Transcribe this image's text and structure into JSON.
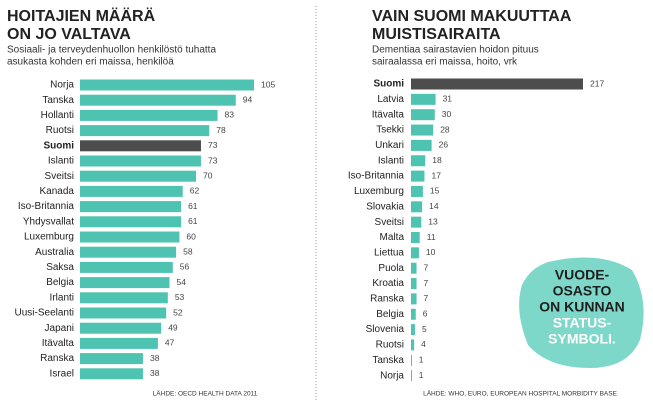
{
  "chart_data": [
    {
      "type": "bar",
      "orientation": "horizontal",
      "title": [
        "HOITAJIEN MÄÄRÄ",
        "ON JO VALTAVA"
      ],
      "subtitle": [
        "Sosiaali- ja terveydenhuollon henkilöstö tuhatta",
        "asukasta kohden eri maissa, henkilöä"
      ],
      "source": "LÄHDE: OECD HEALTH DATA 2011",
      "categories": [
        "Norja",
        "Tanska",
        "Hollanti",
        "Ruotsi",
        "Suomi",
        "Islanti",
        "Sveitsi",
        "Kanada",
        "Iso-Britannia",
        "Yhdysvallat",
        "Luxemburg",
        "Australia",
        "Saksa",
        "Belgia",
        "Irlanti",
        "Uusi-Seelanti",
        "Japani",
        "Itävalta",
        "Ranska",
        "Israel"
      ],
      "values": [
        105,
        94,
        83,
        78,
        73,
        73,
        70,
        62,
        61,
        61,
        60,
        58,
        56,
        54,
        53,
        52,
        49,
        47,
        38,
        38
      ],
      "color": "#4fc3b1",
      "colors": [
        "#4fc3b1",
        "#4fc3b1",
        "#4fc3b1",
        "#4fc3b1",
        "#4d4d4d",
        "#4fc3b1",
        "#4fc3b1",
        "#4fc3b1",
        "#4fc3b1",
        "#4fc3b1",
        "#4fc3b1",
        "#4fc3b1",
        "#4fc3b1",
        "#4fc3b1",
        "#4fc3b1",
        "#4fc3b1",
        "#4fc3b1",
        "#4fc3b1",
        "#4fc3b1",
        "#4fc3b1"
      ]
    },
    {
      "type": "bar",
      "orientation": "horizontal",
      "title": [
        "VAIN SUOMI MAKUUTTAA",
        "MUISTISAIRAITA"
      ],
      "subtitle": [
        "Dementiaa sairastavien hoidon pituus",
        "sairaalassa eri maissa, hoito, vrk"
      ],
      "source": "LÄHDE: WHO, EURO, EUROPEAN HOSPITAL MORBIDITY BASE",
      "categories": [
        "Suomi",
        "Latvia",
        "Itävalta",
        "Tsekki",
        "Unkari",
        "Islanti",
        "Iso-Britannia",
        "Luxemburg",
        "Slovakia",
        "Sveitsi",
        "Malta",
        "Liettua",
        "Puola",
        "Kroatia",
        "Ranska",
        "Belgia",
        "Slovenia",
        "Ruotsi",
        "Tanska",
        "Norja"
      ],
      "values": [
        217,
        31,
        30,
        28,
        26,
        18,
        17,
        15,
        14,
        13,
        11,
        10,
        7,
        7,
        7,
        6,
        5,
        4,
        1,
        1
      ],
      "color": "#4fc3b1",
      "colors": [
        "#4d4d4d",
        "#4fc3b1",
        "#4fc3b1",
        "#4fc3b1",
        "#4fc3b1",
        "#4fc3b1",
        "#4fc3b1",
        "#4fc3b1",
        "#4fc3b1",
        "#4fc3b1",
        "#4fc3b1",
        "#4fc3b1",
        "#4fc3b1",
        "#4fc3b1",
        "#4fc3b1",
        "#4fc3b1",
        "#4fc3b1",
        "#4fc3b1",
        "#4fc3b1",
        "#4fc3b1"
      ]
    }
  ],
  "callout": [
    "VUODE-",
    "OSASTO",
    "ON KUNNAN",
    "STATUS-",
    "SYMBOLI."
  ]
}
